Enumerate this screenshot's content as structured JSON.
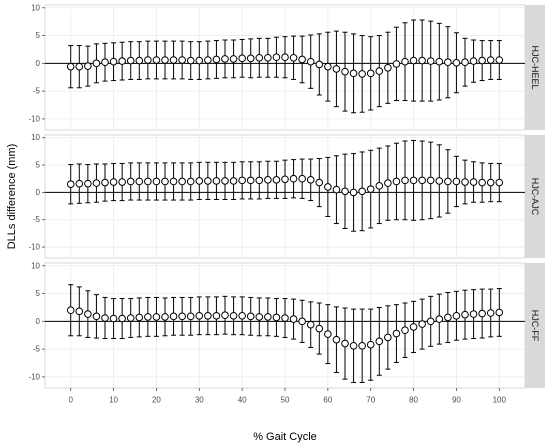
{
  "chart_data": {
    "type": "scatter",
    "xlabel": "% Gait Cycle",
    "ylabel": "DLLs difference (mm)",
    "xlim": [
      -6,
      106
    ],
    "ylim": [
      -12,
      10.5
    ],
    "x_ticks": [
      0,
      10,
      20,
      30,
      40,
      50,
      60,
      70,
      80,
      90,
      100
    ],
    "y_ticks": [
      -10,
      -5,
      0,
      5,
      10
    ],
    "grid": true,
    "x": [
      0,
      2,
      4,
      6,
      8,
      10,
      12,
      14,
      16,
      18,
      20,
      22,
      24,
      26,
      28,
      30,
      32,
      34,
      36,
      38,
      40,
      42,
      44,
      46,
      48,
      50,
      52,
      54,
      56,
      58,
      60,
      62,
      64,
      66,
      68,
      70,
      72,
      74,
      76,
      78,
      80,
      82,
      84,
      86,
      88,
      90,
      92,
      94,
      96,
      98,
      100
    ],
    "panels": [
      {
        "strip": "HJC-HEEL",
        "mean": [
          -0.6,
          -0.6,
          -0.5,
          0,
          0.2,
          0.3,
          0.4,
          0.5,
          0.5,
          0.6,
          0.6,
          0.6,
          0.6,
          0.6,
          0.5,
          0.5,
          0.6,
          0.7,
          0.8,
          0.8,
          0.9,
          0.9,
          1,
          1,
          1.1,
          1.1,
          1,
          0.7,
          0.3,
          -0.2,
          -0.6,
          -1,
          -1.5,
          -1.8,
          -1.9,
          -1.8,
          -1.4,
          -0.8,
          -0.1,
          0.3,
          0.5,
          0.5,
          0.4,
          0.3,
          0.2,
          0.1,
          0.2,
          0.4,
          0.5,
          0.6,
          0.6
        ],
        "sd": [
          3.8,
          3.8,
          3.6,
          3.5,
          3.4,
          3.4,
          3.4,
          3.4,
          3.4,
          3.4,
          3.4,
          3.4,
          3.4,
          3.4,
          3.4,
          3.4,
          3.4,
          3.4,
          3.4,
          3.4,
          3.4,
          3.5,
          3.5,
          3.5,
          3.6,
          3.7,
          3.9,
          4.2,
          4.8,
          5.5,
          6.2,
          6.8,
          7.1,
          7.1,
          6.9,
          6.6,
          6.4,
          6.4,
          6.6,
          7,
          7.3,
          7.3,
          7.2,
          6.9,
          6.4,
          5.4,
          4.3,
          3.8,
          3.6,
          3.5,
          3.5
        ]
      },
      {
        "strip": "HJC-AJC",
        "mean": [
          1.5,
          1.6,
          1.6,
          1.7,
          1.8,
          1.9,
          1.9,
          2,
          2,
          2,
          2,
          2,
          2,
          2,
          2,
          2.1,
          2.1,
          2.1,
          2.1,
          2.1,
          2.2,
          2.2,
          2.2,
          2.3,
          2.3,
          2.4,
          2.5,
          2.5,
          2.3,
          1.8,
          1,
          0.5,
          0.2,
          0,
          0.2,
          0.6,
          1.2,
          1.7,
          2,
          2.2,
          2.2,
          2.2,
          2.2,
          2.1,
          2,
          2,
          1.9,
          1.9,
          1.8,
          1.8,
          1.8
        ],
        "sd": [
          3.6,
          3.6,
          3.5,
          3.5,
          3.4,
          3.4,
          3.4,
          3.4,
          3.4,
          3.4,
          3.4,
          3.4,
          3.4,
          3.4,
          3.4,
          3.4,
          3.4,
          3.4,
          3.4,
          3.4,
          3.4,
          3.4,
          3.4,
          3.4,
          3.4,
          3.5,
          3.5,
          3.6,
          3.8,
          4.4,
          5.4,
          6.2,
          6.8,
          7.1,
          7.2,
          7.1,
          6.9,
          6.8,
          7,
          7.2,
          7.3,
          7.2,
          7,
          6.6,
          5.8,
          4.6,
          4,
          3.7,
          3.6,
          3.5,
          3.5
        ]
      },
      {
        "strip": "HJC-FF",
        "mean": [
          2,
          1.8,
          1.3,
          0.9,
          0.6,
          0.5,
          0.5,
          0.6,
          0.7,
          0.8,
          0.8,
          0.8,
          0.9,
          0.9,
          0.9,
          1,
          1,
          1,
          1.1,
          1,
          1,
          0.9,
          0.8,
          0.8,
          0.7,
          0.6,
          0.4,
          0,
          -0.6,
          -1.3,
          -2.3,
          -3.3,
          -4,
          -4.4,
          -4.4,
          -4.2,
          -3.6,
          -2.9,
          -2.2,
          -1.6,
          -1,
          -0.5,
          0,
          0.4,
          0.7,
          1,
          1.2,
          1.3,
          1.4,
          1.5,
          1.6
        ],
        "sd": [
          4.6,
          4.4,
          4.2,
          3.9,
          3.7,
          3.6,
          3.6,
          3.5,
          3.5,
          3.5,
          3.5,
          3.4,
          3.4,
          3.4,
          3.4,
          3.4,
          3.4,
          3.4,
          3.4,
          3.4,
          3.4,
          3.4,
          3.4,
          3.4,
          3.4,
          3.5,
          3.6,
          3.8,
          4.1,
          4.6,
          5.3,
          5.9,
          6.4,
          6.6,
          6.6,
          6.4,
          6.1,
          5.7,
          5.2,
          4.9,
          4.6,
          4.5,
          4.5,
          4.5,
          4.5,
          4.4,
          4.4,
          4.4,
          4.4,
          4.3,
          4.3
        ]
      }
    ]
  }
}
